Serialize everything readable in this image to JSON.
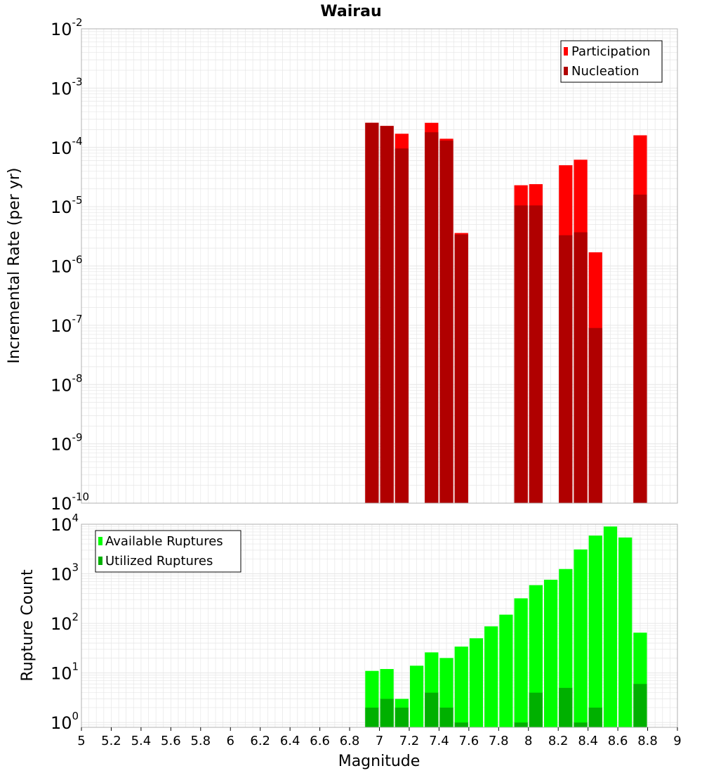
{
  "title": "Wairau",
  "colors": {
    "participation": "#ff0000",
    "nucleation": "#b00000",
    "available": "#00ff00",
    "utilized": "#00b000",
    "grid": "#e6e6e6",
    "frame": "#b0b0b0"
  },
  "chart_data": [
    {
      "type": "bar",
      "name": "rates",
      "title": "Wairau",
      "xlabel": "",
      "ylabel": "Incremental Rate (per yr)",
      "y_scale": "log",
      "ylim": [
        1e-10,
        0.01
      ],
      "xlim": [
        5,
        9
      ],
      "bar_width": 0.1,
      "grid": true,
      "legend_placement": "top-right",
      "y_ticks": [
        {
          "base": "10",
          "exp": "-2",
          "value": 0.01
        },
        {
          "base": "10",
          "exp": "-3",
          "value": 0.001
        },
        {
          "base": "10",
          "exp": "-4",
          "value": 0.0001
        },
        {
          "base": "10",
          "exp": "-5",
          "value": 1e-05
        },
        {
          "base": "10",
          "exp": "-6",
          "value": 1e-06
        },
        {
          "base": "10",
          "exp": "-7",
          "value": 1e-07
        },
        {
          "base": "10",
          "exp": "-8",
          "value": 1e-08
        },
        {
          "base": "10",
          "exp": "-9",
          "value": 1e-09
        },
        {
          "base": "10",
          "exp": "-10",
          "value": 1e-10
        }
      ],
      "series": [
        {
          "name": "Participation",
          "color": "#ff0000",
          "x": [
            6.95,
            7.05,
            7.15,
            7.35,
            7.45,
            7.55,
            7.95,
            8.05,
            8.25,
            8.35,
            8.45,
            8.75
          ],
          "values": [
            0.00026,
            0.00023,
            0.00017,
            0.00026,
            0.00014,
            3.6e-06,
            2.3e-05,
            2.4e-05,
            5e-05,
            6.2e-05,
            1.7e-06,
            0.00016
          ]
        },
        {
          "name": "Nucleation",
          "color": "#b00000",
          "x": [
            6.95,
            7.05,
            7.15,
            7.35,
            7.45,
            7.55,
            7.95,
            8.05,
            8.25,
            8.35,
            8.45,
            8.75
          ],
          "values": [
            0.00026,
            0.00023,
            9.6e-05,
            0.00018,
            0.00013,
            3.4e-06,
            1.05e-05,
            1.05e-05,
            3.3e-06,
            3.7e-06,
            9e-08,
            1.6e-05
          ]
        }
      ]
    },
    {
      "type": "bar",
      "name": "rupture-counts",
      "xlabel": "Magnitude",
      "ylabel": "Rupture Count",
      "y_scale": "log",
      "ylim": [
        0.8,
        10000
      ],
      "xlim": [
        5,
        9
      ],
      "bar_width": 0.1,
      "grid": true,
      "legend_placement": "top-left",
      "x_ticks": [
        "5",
        "5.2",
        "5.4",
        "5.6",
        "5.8",
        "6",
        "6.2",
        "6.4",
        "6.6",
        "6.8",
        "7",
        "7.2",
        "7.4",
        "7.6",
        "7.8",
        "8",
        "8.2",
        "8.4",
        "8.6",
        "8.8",
        "9"
      ],
      "y_ticks": [
        {
          "base": "10",
          "exp": "4",
          "value": 10000
        },
        {
          "base": "10",
          "exp": "3",
          "value": 1000
        },
        {
          "base": "10",
          "exp": "2",
          "value": 100
        },
        {
          "base": "10",
          "exp": "1",
          "value": 10
        },
        {
          "base": "10",
          "exp": "0",
          "value": 1
        }
      ],
      "series": [
        {
          "name": "Available Ruptures",
          "color": "#00ff00",
          "x": [
            6.95,
            7.05,
            7.15,
            7.25,
            7.35,
            7.45,
            7.55,
            7.65,
            7.75,
            7.85,
            7.95,
            8.05,
            8.15,
            8.25,
            8.35,
            8.45,
            8.55,
            8.65,
            8.75
          ],
          "values": [
            11,
            12,
            3,
            14,
            26,
            20,
            34,
            50,
            87,
            150,
            320,
            590,
            760,
            1250,
            3100,
            5900,
            9000,
            5400,
            65
          ]
        },
        {
          "name": "Utilized Ruptures",
          "color": "#00b000",
          "x": [
            6.95,
            7.05,
            7.15,
            7.35,
            7.45,
            7.55,
            7.95,
            8.05,
            8.25,
            8.35,
            8.45,
            8.75
          ],
          "values": [
            2,
            3,
            2,
            4,
            2,
            1,
            1,
            4,
            5,
            1,
            2,
            6
          ]
        }
      ]
    }
  ]
}
